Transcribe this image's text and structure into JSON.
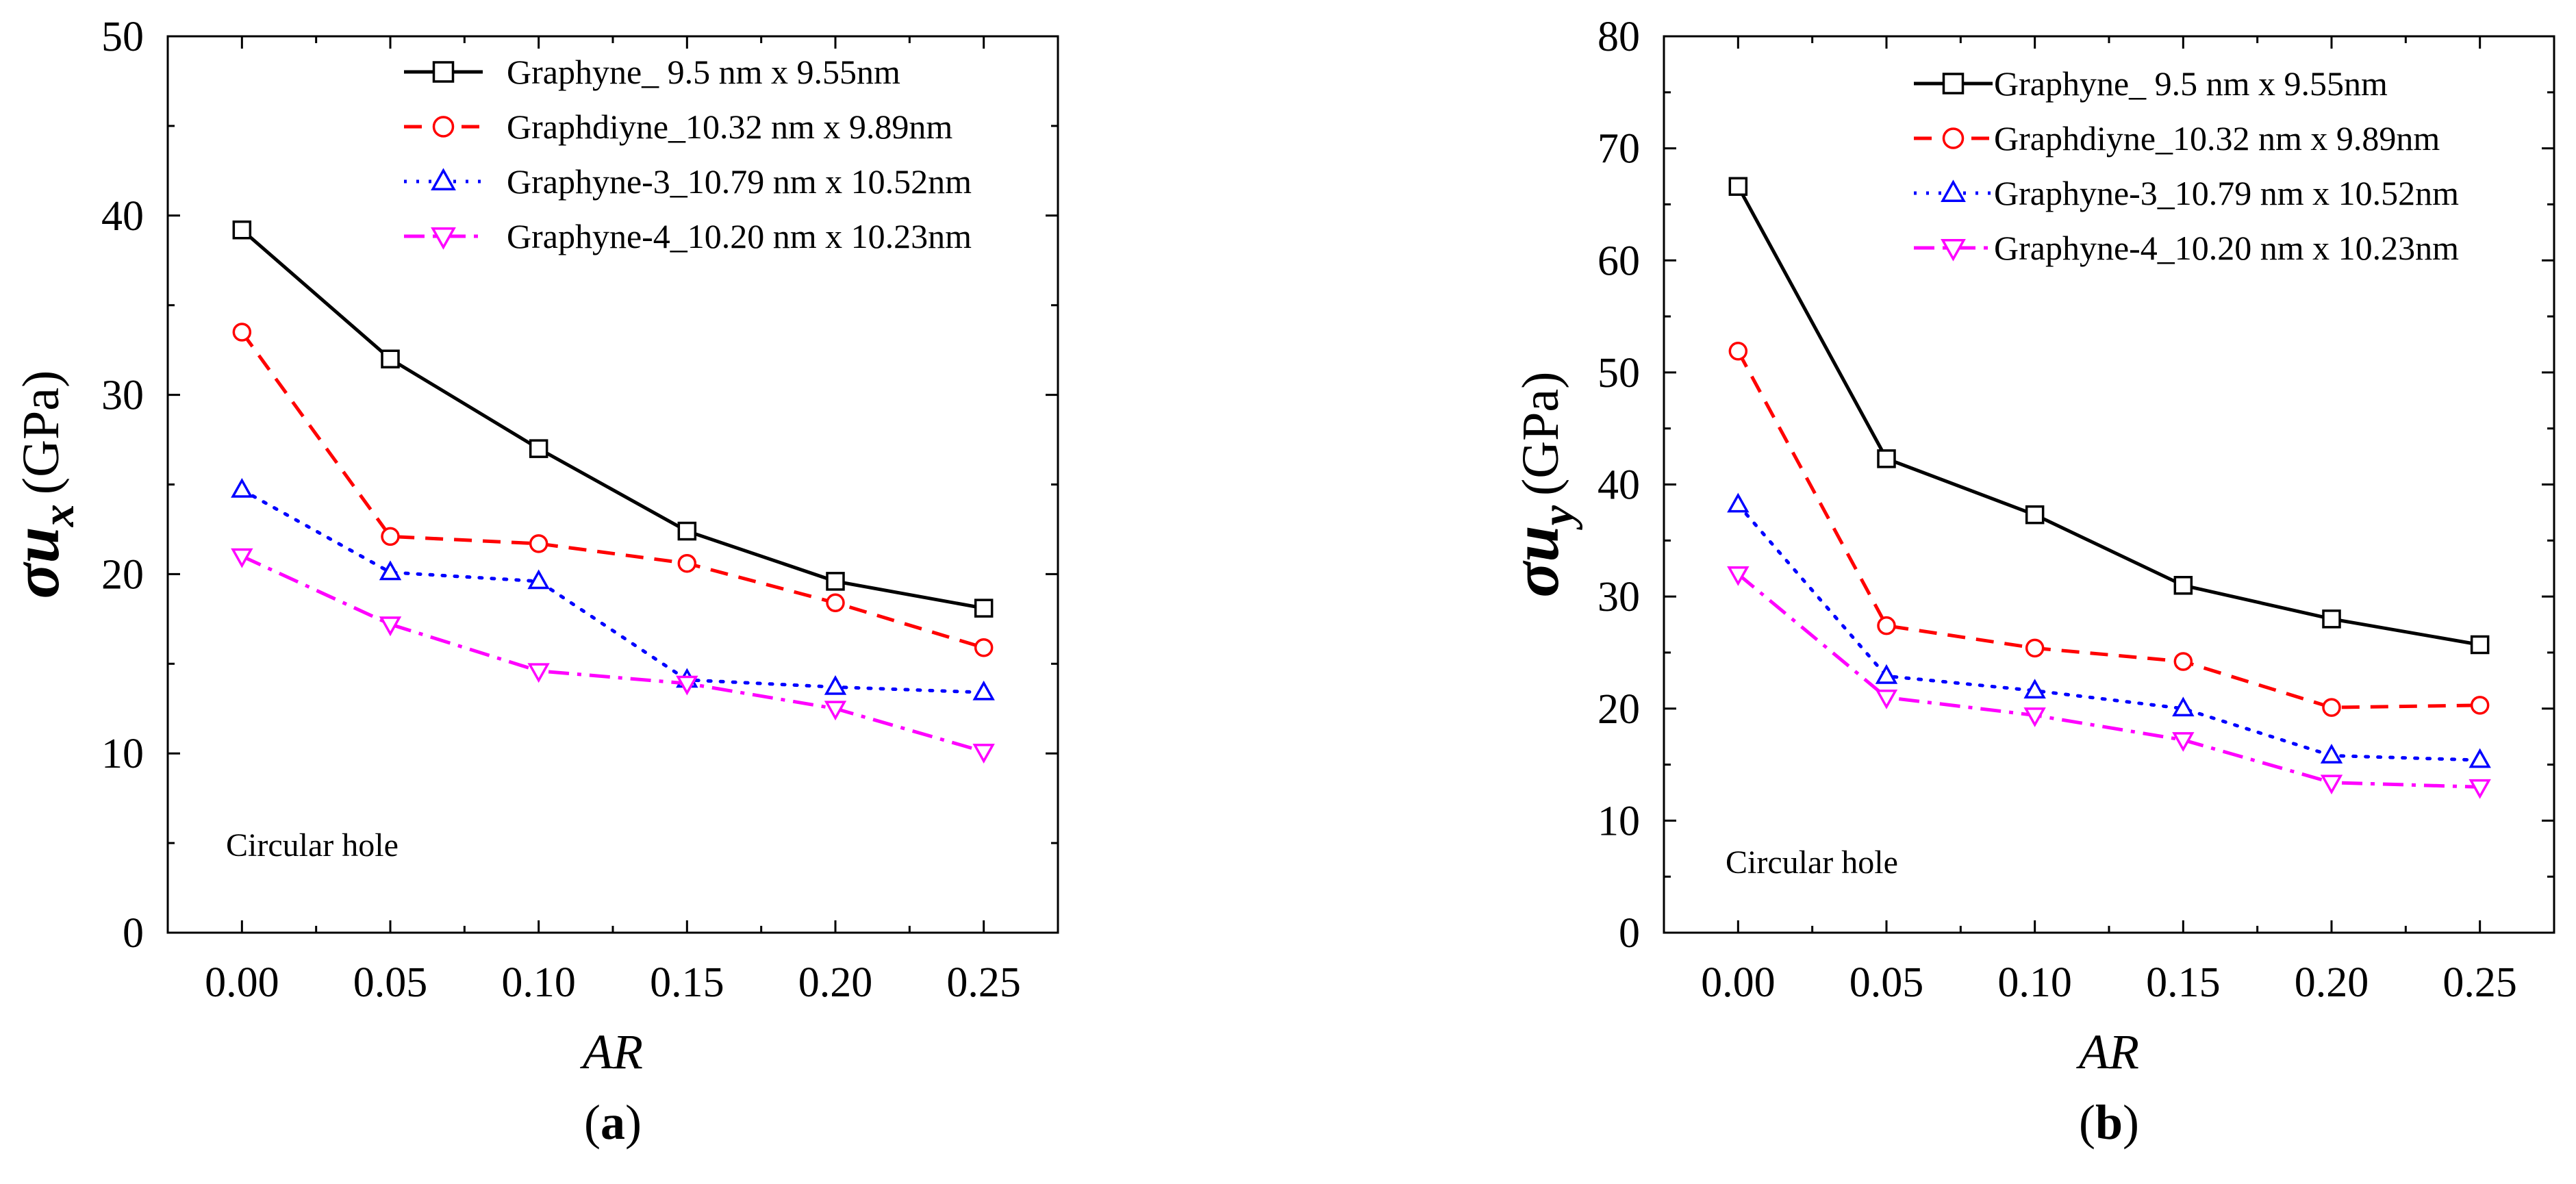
{
  "chart_data": [
    {
      "type": "line",
      "panel": "a",
      "caption_open": "(",
      "caption_letter": "a",
      "caption_close": ")",
      "xlabel": "AR",
      "ylabel_symbol": "σu",
      "ylabel_sub": "x",
      "ylabel_unit": "(GPa)",
      "x": [
        0.0,
        0.05,
        0.1,
        0.15,
        0.2,
        0.25
      ],
      "xticks": [
        "0.00",
        "0.05",
        "0.10",
        "0.15",
        "0.20",
        "0.25"
      ],
      "xlim": [
        -0.025,
        0.275
      ],
      "ylim": [
        0,
        50
      ],
      "yticks": [
        "0",
        "10",
        "20",
        "30",
        "40",
        "50"
      ],
      "annotation": "Circular hole",
      "legend_position": "top-right",
      "series": [
        {
          "name": "Graphyne_   9.5 nm x 9.55nm",
          "color": "#000000",
          "dash": "solid",
          "marker": "square",
          "values": [
            39.2,
            32.0,
            27.0,
            22.4,
            19.6,
            18.1
          ]
        },
        {
          "name": "Graphdiyne_10.32 nm x 9.89nm",
          "color": "#ff0000",
          "dash": "dashed",
          "marker": "circle",
          "values": [
            33.5,
            22.1,
            21.7,
            20.6,
            18.4,
            15.9
          ]
        },
        {
          "name": "Graphyne-3_10.79 nm x 10.52nm",
          "color": "#0000ff",
          "dash": "dotted",
          "marker": "triangle-up",
          "values": [
            24.7,
            20.1,
            19.6,
            14.1,
            13.7,
            13.4
          ]
        },
        {
          "name": "Graphyne-4_10.20 nm x 10.23nm",
          "color": "#ff00ff",
          "dash": "dashdot",
          "marker": "triangle-down",
          "values": [
            21.0,
            17.2,
            14.6,
            13.9,
            12.5,
            10.1
          ]
        }
      ]
    },
    {
      "type": "line",
      "panel": "b",
      "caption_open": "(",
      "caption_letter": "b",
      "caption_close": ")",
      "xlabel": "AR",
      "ylabel_symbol": "σu",
      "ylabel_sub": "y",
      "ylabel_unit": "(GPa)",
      "x": [
        0.0,
        0.05,
        0.1,
        0.15,
        0.2,
        0.25
      ],
      "xticks": [
        "0.00",
        "0.05",
        "0.10",
        "0.15",
        "0.20",
        "0.25"
      ],
      "xlim": [
        -0.025,
        0.275
      ],
      "ylim": [
        0,
        80
      ],
      "yticks": [
        "0",
        "10",
        "20",
        "30",
        "40",
        "50",
        "60",
        "70",
        "80"
      ],
      "annotation": "Circular hole",
      "legend_position": "top-right",
      "series": [
        {
          "name": "Graphyne_   9.5 nm x 9.55nm",
          "color": "#000000",
          "dash": "solid",
          "marker": "square",
          "values": [
            66.6,
            42.3,
            37.3,
            31.0,
            28.0,
            25.7
          ]
        },
        {
          "name": "Graphdiyne_10.32 nm x 9.89nm",
          "color": "#ff0000",
          "dash": "dashed",
          "marker": "circle",
          "values": [
            51.9,
            27.4,
            25.4,
            24.2,
            20.1,
            20.3
          ]
        },
        {
          "name": "Graphyne-3_10.79 nm x 10.52nm",
          "color": "#0000ff",
          "dash": "dotted",
          "marker": "triangle-up",
          "values": [
            38.2,
            22.9,
            21.6,
            20.0,
            15.8,
            15.4
          ]
        },
        {
          "name": "Graphyne-4_10.20 nm x 10.23nm",
          "color": "#ff00ff",
          "dash": "dashdot",
          "marker": "triangle-down",
          "values": [
            32.0,
            21.0,
            19.4,
            17.2,
            13.4,
            13.0
          ]
        }
      ]
    }
  ]
}
